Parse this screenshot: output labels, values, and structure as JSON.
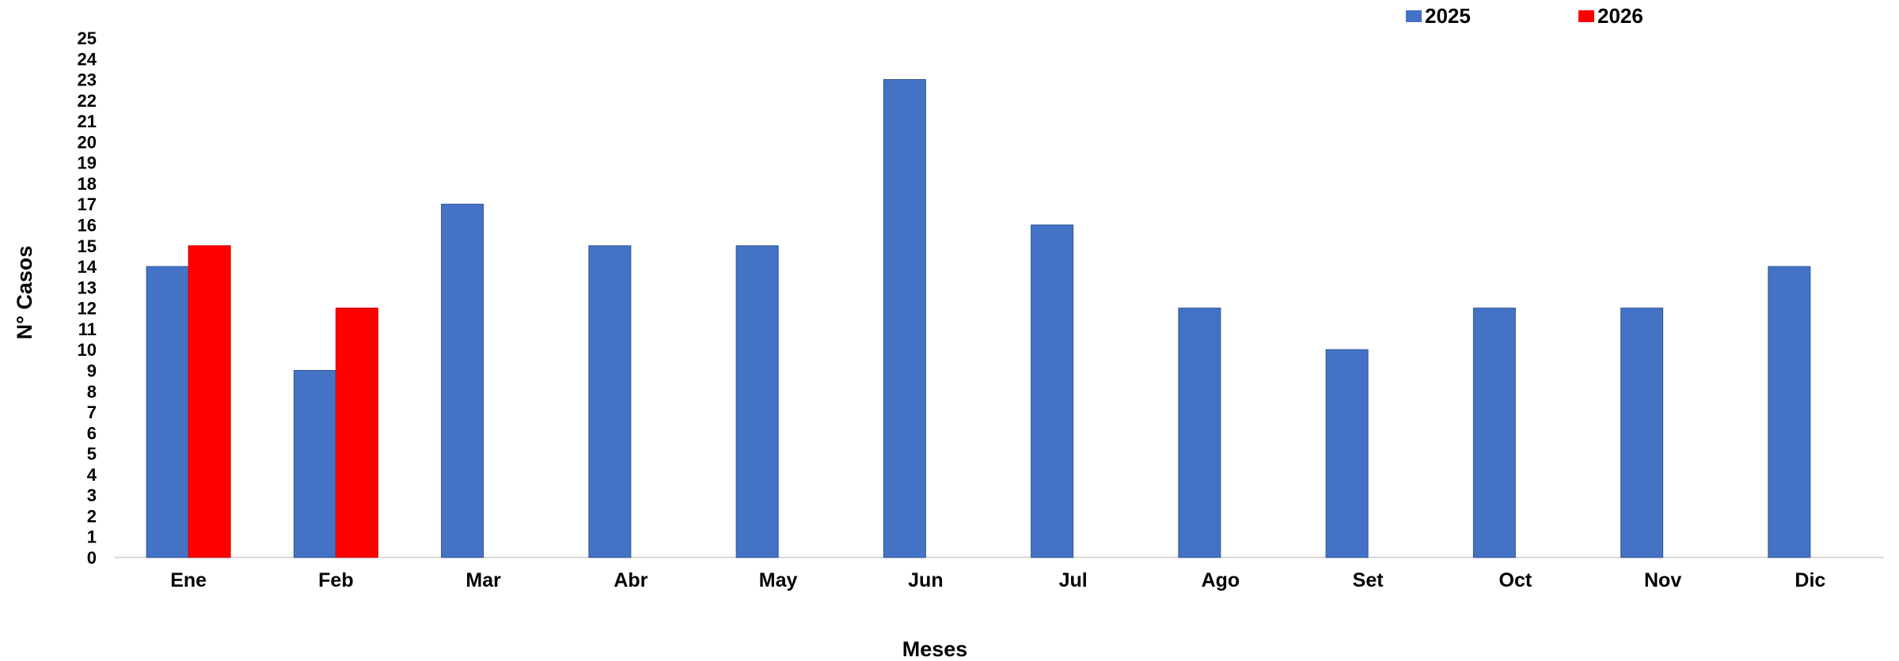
{
  "chart_data": {
    "type": "bar",
    "categories": [
      "Ene",
      "Feb",
      "Mar",
      "Abr",
      "May",
      "Jun",
      "Jul",
      "Ago",
      "Set",
      "Oct",
      "Nov",
      "Dic"
    ],
    "series": [
      {
        "name": "2025",
        "color": "#4472C4",
        "values": [
          14,
          9,
          17,
          15,
          15,
          23,
          16,
          12,
          10,
          12,
          12,
          14
        ]
      },
      {
        "name": "2026",
        "color": "#FF0000",
        "values": [
          15,
          12,
          null,
          null,
          null,
          null,
          null,
          null,
          null,
          null,
          null,
          null
        ]
      }
    ],
    "xlabel": "Meses",
    "ylabel": "N° Casos",
    "ylim": [
      0,
      25
    ],
    "ytick_step": 1,
    "legend_position": "top-right",
    "grid": false
  }
}
